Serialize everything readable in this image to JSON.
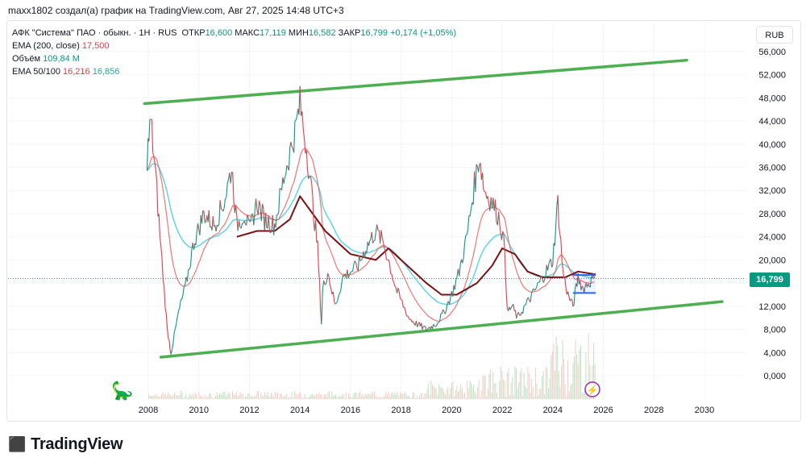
{
  "caption": "maxx1802 создал(а) график на TradingView.com, Авг 27, 2025 14:48 UTC+3",
  "legend": {
    "symbol": "АФК \"Система\" ПАО · обыкн. · 1Н · RUS",
    "open_label": "ОТКР",
    "open": "16,600",
    "high_label": "МАКС",
    "high": "17,119",
    "low_label": "МИН",
    "low": "16,582",
    "close_label": "ЗАКР",
    "close": "16,799",
    "change": "+0,174 (+1,05%)",
    "ema200_label": "EMA (200, close)",
    "ema200": "17,500",
    "volume_label": "Объём",
    "volume": "109,84 M",
    "ema50100_label": "EMA 50/100",
    "ema50": "16,216",
    "ema100": "16,856"
  },
  "currency": "RUB",
  "last_price": "16,799",
  "brand": "TradingView",
  "colors": {
    "up": "#089981",
    "down": "#f23645",
    "channel": "#4caf50",
    "ema_fast": "#ef5350",
    "ema_mid": "#4dd0e1",
    "ema_slow": "#7b1113",
    "box": "#2962ff"
  },
  "chart_data": {
    "type": "line",
    "x_ticks": [
      "2008",
      "2010",
      "2012",
      "2014",
      "2016",
      "2018",
      "2020",
      "2022",
      "2024",
      "2026",
      "2028",
      "2030"
    ],
    "y_ticks": [
      "56,000",
      "52,000",
      "48,000",
      "44,000",
      "40,000",
      "36,000",
      "32,000",
      "28,000",
      "24,000",
      "20,000",
      "16,000",
      "12,000",
      "8,000",
      "4,000",
      "0,000"
    ],
    "ylim": [
      0,
      58
    ],
    "xlim": [
      2007.6,
      2031
    ],
    "series": [
      {
        "role": "price",
        "x": [
          2007.95,
          2008.1,
          2008.3,
          2008.5,
          2008.75,
          2008.9,
          2009.2,
          2009.5,
          2009.8,
          2010.2,
          2010.6,
          2011.0,
          2011.3,
          2011.5,
          2011.8,
          2012.0,
          2012.3,
          2012.6,
          2013.0,
          2013.4,
          2013.8,
          2014.0,
          2014.3,
          2014.5,
          2014.7,
          2014.85,
          2014.9,
          2015.1,
          2015.4,
          2015.7,
          2016.0,
          2016.3,
          2016.6,
          2017.0,
          2017.3,
          2017.5,
          2017.8,
          2018.0,
          2018.3,
          2018.6,
          2019.0,
          2019.4,
          2019.7,
          2020.0,
          2020.3,
          2020.6,
          2020.9,
          2021.1,
          2021.3,
          2021.6,
          2021.9,
          2022.1,
          2022.2,
          2022.4,
          2022.6,
          2022.9,
          2023.2,
          2023.6,
          2024.0,
          2024.2,
          2024.4,
          2024.6,
          2024.8,
          2025.0,
          2025.2,
          2025.4,
          2025.65
        ],
        "y": [
          38,
          44,
          34,
          22,
          8,
          4,
          11,
          16,
          23,
          28,
          26,
          30,
          36,
          26,
          28,
          25,
          30,
          27,
          26,
          35,
          42,
          47,
          38,
          30,
          22,
          9,
          15,
          18,
          12,
          17,
          18,
          19,
          22,
          25,
          23,
          20,
          15,
          13,
          10,
          9,
          8,
          9,
          11,
          14,
          18,
          24,
          33,
          38,
          32,
          30,
          27,
          22,
          11,
          12,
          10,
          12,
          14,
          17,
          20,
          30,
          18,
          14,
          12,
          17,
          15,
          16,
          16.8
        ]
      },
      {
        "role": "ema200",
        "x": [
          2009.4,
          2010.5,
          2011.5,
          2012.3,
          2013.0,
          2013.6,
          2014.0,
          2014.5,
          2015.0,
          2016.0,
          2017.0,
          2017.5,
          2018.0,
          2019.0,
          2019.6,
          2020.2,
          2021.0,
          2021.6,
          2022.0,
          2022.5,
          2023.0,
          2023.6,
          2024.0,
          2024.5,
          2025.0,
          2025.7
        ],
        "y": [
          null,
          null,
          24,
          25,
          25,
          27,
          31,
          28,
          25,
          21,
          20,
          22,
          20,
          16,
          14,
          14,
          16,
          19,
          22,
          21,
          18,
          17,
          17,
          17,
          18,
          17.5
        ]
      },
      {
        "role": "channel_upper",
        "x": [
          2007.85,
          2029.3
        ],
        "y": [
          47,
          54.5
        ]
      },
      {
        "role": "channel_lower",
        "x": [
          2008.5,
          2030.7
        ],
        "y": [
          3.2,
          12.8
        ]
      }
    ]
  }
}
